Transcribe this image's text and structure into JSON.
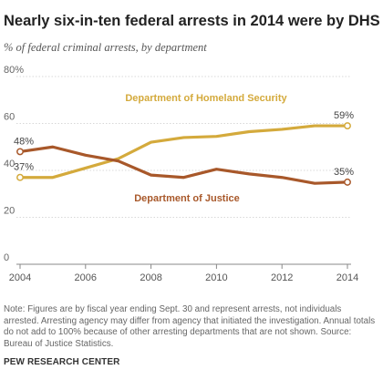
{
  "title": "Nearly six-in-ten federal arrests in 2014 were by DHS",
  "subtitle": "% of federal criminal arrests, by department",
  "colors": {
    "dhs": "#D4AA3C",
    "doj": "#A8582A",
    "grid": "#cccccc",
    "axis": "#888888"
  },
  "chart_data": {
    "type": "line",
    "x": [
      2004,
      2005,
      2006,
      2007,
      2008,
      2009,
      2010,
      2011,
      2012,
      2013,
      2014
    ],
    "xticks": [
      "2004",
      "2006",
      "2008",
      "2010",
      "2012",
      "2014"
    ],
    "xtick_values": [
      2004,
      2006,
      2008,
      2010,
      2012,
      2014
    ],
    "xlim": [
      2004,
      2014
    ],
    "ylim": [
      0,
      80
    ],
    "yticks": [
      "0",
      "20",
      "40",
      "60",
      "80%"
    ],
    "ytick_values": [
      0,
      20,
      40,
      60,
      80
    ],
    "grid": true,
    "series": [
      {
        "name": "Department of Homeland Security",
        "color": "#D4AA3C",
        "values": [
          37,
          37,
          41,
          45,
          52,
          54,
          54.5,
          56.5,
          57.5,
          59,
          59
        ],
        "start_label": "37%",
        "end_label": "59%"
      },
      {
        "name": "Department of Justice",
        "color": "#A8582A",
        "values": [
          48,
          50,
          46.5,
          44,
          38,
          37,
          40.5,
          38.5,
          37,
          34.5,
          35
        ],
        "start_label": "48%",
        "end_label": "35%"
      }
    ]
  },
  "note": "Note: Figures are by fiscal year ending Sept. 30 and represent arrests, not individuals arrested. Arresting agency may differ from agency that initiated the investigation. Annual totals do not add to 100% because of other arresting departments that are not shown.",
  "source": "Source: Bureau of Justice Statistics.",
  "org": "PEW RESEARCH CENTER"
}
